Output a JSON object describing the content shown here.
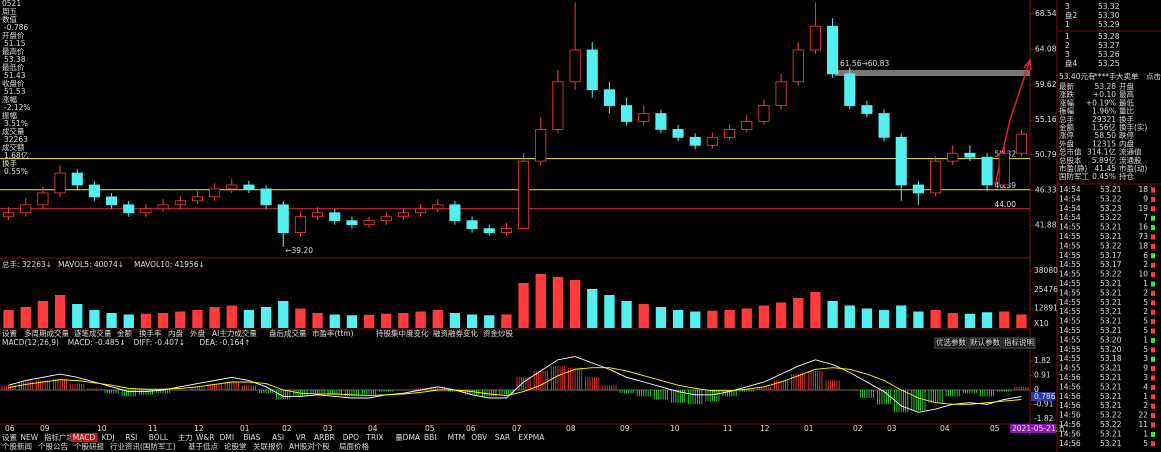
{
  "left_panel": {
    "date": "0521",
    "weekday": "周五",
    "rows": [
      [
        "数值",
        "-0.786"
      ],
      [
        "开盘价",
        "51.15"
      ],
      [
        "最高价",
        "53.38"
      ],
      [
        "最低价",
        "51.43"
      ],
      [
        "收盘价",
        "51.53"
      ],
      [
        "涨幅",
        "-2.12%"
      ],
      [
        "振幅",
        "3.51%"
      ],
      [
        "成交量",
        "32263"
      ],
      [
        "成交额",
        "1.68亿"
      ],
      [
        "换手",
        "0.55%"
      ]
    ]
  },
  "chart_data": {
    "type": "candlestick",
    "ohlc": [
      [
        43,
        44.2,
        42.6,
        43.5
      ],
      [
        43.5,
        45.3,
        43,
        44.5
      ],
      [
        44.5,
        46.8,
        44,
        46
      ],
      [
        46,
        49.5,
        45.5,
        48.5
      ],
      [
        48.5,
        49,
        46.3,
        47
      ],
      [
        47,
        47.5,
        45,
        45.5
      ],
      [
        45.5,
        46,
        44,
        44.5
      ],
      [
        44.5,
        45,
        43,
        43.5
      ],
      [
        43.5,
        44.6,
        43,
        44
      ],
      [
        44,
        45.2,
        43.6,
        44.5
      ],
      [
        44.5,
        45.6,
        44,
        45
      ],
      [
        45,
        46.2,
        44.6,
        45.5
      ],
      [
        45.5,
        47.2,
        45,
        46.5
      ],
      [
        46.5,
        47.8,
        46,
        47
      ],
      [
        47,
        47.5,
        46,
        46.5
      ],
      [
        46.5,
        47,
        44,
        44.5
      ],
      [
        44.5,
        45,
        39.2,
        41
      ],
      [
        41,
        43.6,
        40.5,
        43
      ],
      [
        43,
        44.2,
        42.6,
        43.5
      ],
      [
        43.5,
        44,
        42,
        42.5
      ],
      [
        42.5,
        43,
        41.5,
        42
      ],
      [
        42,
        43,
        41.6,
        42.5
      ],
      [
        42.5,
        43.6,
        42,
        43
      ],
      [
        43,
        44,
        42.6,
        43.5
      ],
      [
        43.5,
        44.6,
        43,
        44
      ],
      [
        44,
        45.2,
        43.6,
        44.5
      ],
      [
        44.5,
        45,
        42,
        42.5
      ],
      [
        42.5,
        43,
        41,
        41.5
      ],
      [
        41.5,
        42,
        40.6,
        41
      ],
      [
        41,
        42.2,
        40.6,
        41.5
      ],
      [
        41.5,
        51,
        41.5,
        50
      ],
      [
        50,
        55.5,
        49.5,
        54
      ],
      [
        54,
        61.5,
        53.5,
        60
      ],
      [
        60,
        70,
        59,
        64
      ],
      [
        64,
        65,
        58,
        59
      ],
      [
        59,
        60,
        56,
        57
      ],
      [
        57,
        58,
        54.5,
        55
      ],
      [
        55,
        57,
        54.5,
        56
      ],
      [
        56,
        56.5,
        53.5,
        54
      ],
      [
        54,
        54.6,
        52.5,
        53
      ],
      [
        53,
        53.5,
        51.5,
        52
      ],
      [
        52,
        53.6,
        51.6,
        53
      ],
      [
        53,
        54.6,
        52.6,
        54
      ],
      [
        54,
        55.8,
        53.6,
        55
      ],
      [
        55,
        57.8,
        54.6,
        57
      ],
      [
        57,
        61,
        56.5,
        60
      ],
      [
        60,
        65,
        59.5,
        64
      ],
      [
        64,
        70,
        63.5,
        67
      ],
      [
        67,
        68,
        60.5,
        61
      ],
      [
        61,
        61.8,
        56.5,
        57
      ],
      [
        57,
        57.6,
        55.5,
        56
      ],
      [
        56,
        56.5,
        52.5,
        53
      ],
      [
        53,
        53.5,
        45,
        47
      ],
      [
        47,
        47.5,
        44.5,
        46
      ],
      [
        46,
        50.6,
        45.6,
        50
      ],
      [
        50,
        52,
        49.5,
        51
      ],
      [
        51,
        52,
        50,
        50.5
      ],
      [
        50.5,
        51,
        46.2,
        47
      ],
      [
        47,
        51.8,
        46.6,
        51
      ],
      [
        51,
        54,
        50.6,
        53.4
      ]
    ],
    "up_color": "#ff3c3c",
    "down_color": "#54f0f0",
    "ylim": [
      37.8,
      70.3
    ],
    "yticks": [
      68.54,
      64.08,
      59.62,
      55.16,
      50.79,
      46.33,
      41.88
    ],
    "hlines": [
      {
        "value": 50.32,
        "label": "50.32",
        "color": "#e8e84a"
      },
      {
        "value": 46.39,
        "label": "46.39",
        "color": "#e8e84a"
      },
      {
        "value": 44.0,
        "label": "44.00",
        "color": "#e03030"
      }
    ],
    "low_label": "←39.20",
    "zone_label": "61.56→60.83",
    "date_labels": [
      "06",
      "09",
      "10",
      "11",
      "12",
      "01",
      "02",
      "03",
      "04",
      "05",
      "06",
      "07",
      "08",
      "09",
      "10",
      "11",
      "12",
      "01",
      "02",
      "03",
      "04",
      "05"
    ],
    "cursor_date": "2021-05-21,五",
    "volume": {
      "header": [
        "总手: 32263↓",
        "MAVOL5: 40074↓",
        "MAVOL10: 41956↓"
      ],
      "values": [
        12000,
        14000,
        18000,
        22000,
        16000,
        12000,
        10000,
        9000,
        9500,
        10000,
        11000,
        12000,
        14000,
        15000,
        12000,
        14000,
        18000,
        13000,
        10000,
        9000,
        8500,
        8800,
        9500,
        10000,
        11000,
        12000,
        10000,
        9000,
        8500,
        9000,
        30000,
        36000,
        34000,
        32000,
        26000,
        22000,
        18000,
        16000,
        14000,
        12000,
        11000,
        11500,
        12000,
        13000,
        15000,
        17000,
        20000,
        24000,
        18000,
        15000,
        13000,
        12000,
        15000,
        11000,
        12000,
        10000,
        9500,
        10500,
        11000,
        9000
      ],
      "ylim": [
        0,
        40000
      ],
      "yticks": [
        38080,
        25476,
        12891
      ],
      "unit_label": "X10"
    },
    "volume_tabs": [
      "设置",
      "多周期成交量",
      "逐笔成交量",
      "金额",
      "换手率",
      "内盘",
      "外盘",
      "AI主力成交量",
      "盘后成交量",
      "市盈率(ttm)",
      "持股集中度变化",
      "融资融券变化",
      "资金炒股"
    ],
    "macd": {
      "header": [
        "MACD(12,26,9)",
        "MACD: -0.485↓",
        "DIFF: -0.407↓",
        "DEA: -0.164↑"
      ],
      "buttons": [
        "优选参数",
        "默认参数",
        "指标说明"
      ],
      "hist": [
        0.3,
        0.5,
        0.6,
        0.7,
        0.4,
        0.1,
        -0.2,
        -0.4,
        -0.3,
        -0.2,
        0,
        0.2,
        0.4,
        0.5,
        0.3,
        -0.2,
        -0.6,
        -0.4,
        -0.2,
        -0.3,
        -0.4,
        -0.3,
        -0.1,
        0,
        0.1,
        0.2,
        -0.1,
        -0.3,
        -0.4,
        -0.3,
        0.8,
        1.2,
        1.5,
        1.4,
        0.8,
        0.3,
        -0.2,
        -0.4,
        -0.6,
        -0.8,
        -0.9,
        -0.7,
        -0.4,
        -0.1,
        0.2,
        0.6,
        1.0,
        1.2,
        0.6,
        0,
        -0.5,
        -0.9,
        -1.4,
        -1.3,
        -0.8,
        -0.4,
        -0.2,
        -0.4,
        -0.1,
        0.2
      ],
      "diff": [
        0.3,
        0.6,
        0.8,
        1.0,
        0.8,
        0.5,
        0.2,
        -0.1,
        -0.1,
        0,
        0.2,
        0.4,
        0.6,
        0.8,
        0.6,
        0.2,
        -0.4,
        -0.4,
        -0.3,
        -0.4,
        -0.5,
        -0.5,
        -0.3,
        -0.2,
        0,
        0.2,
        0,
        -0.3,
        -0.5,
        -0.5,
        0.5,
        1.2,
        1.9,
        2.1,
        1.7,
        1.3,
        0.8,
        0.5,
        0.2,
        -0.1,
        -0.3,
        -0.3,
        -0.1,
        0.2,
        0.5,
        1.0,
        1.5,
        1.9,
        1.6,
        1.1,
        0.5,
        -0.1,
        -1.0,
        -1.4,
        -1.2,
        -0.9,
        -0.8,
        -0.9,
        -0.6,
        -0.4
      ],
      "dea": [
        0.15,
        0.35,
        0.5,
        0.65,
        0.6,
        0.45,
        0.3,
        0.1,
        0.05,
        0.05,
        0.1,
        0.2,
        0.35,
        0.5,
        0.5,
        0.4,
        0.0,
        -0.2,
        -0.25,
        -0.25,
        -0.3,
        -0.35,
        -0.3,
        -0.25,
        -0.15,
        0,
        0,
        -0.1,
        -0.25,
        -0.35,
        -0.1,
        0.3,
        0.9,
        1.3,
        1.4,
        1.4,
        1.2,
        0.9,
        0.6,
        0.3,
        0.1,
        -0.05,
        -0.05,
        0.05,
        0.2,
        0.5,
        0.9,
        1.3,
        1.4,
        1.3,
        1.0,
        0.6,
        0.0,
        -0.5,
        -0.8,
        -0.9,
        -0.9,
        -0.8,
        -0.7,
        -0.6
      ],
      "ylim": [
        -2.2,
        2.2
      ],
      "yticks": [
        1.82,
        0.91,
        0,
        -0.91,
        -1.82
      ],
      "cursor_value": "0.786"
    }
  },
  "indicator_tabs": [
    "设置",
    "NEW",
    "指标广场",
    "MACD",
    "KDJ",
    "RSI",
    "BOLL",
    "主力",
    "W&R",
    "DMI",
    "BIAS",
    "ASI",
    "VR",
    "ARBR",
    "DPO",
    "TRIX",
    "量DMA",
    "BBI",
    "MTM",
    "OBV",
    "SAR",
    "EXPMA"
  ],
  "info_tabs": [
    "个股新闻",
    "个股公告",
    "个股研报",
    "行业资讯(国防军工)",
    "基于低点",
    "论股堂",
    "关联报价",
    "AH股对个股",
    "局面价格"
  ],
  "order_book": {
    "asks": [
      [
        "3",
        "53.32"
      ],
      [
        "盘2",
        "53.30"
      ],
      [
        "1",
        "53.29"
      ]
    ],
    "bids": [
      [
        "1",
        "53.28"
      ],
      [
        "2",
        "53.27"
      ],
      [
        "3",
        "53.26"
      ],
      [
        "盘4",
        "53.25"
      ]
    ]
  },
  "big_order": [
    "53.40元有",
    "****手",
    "大卖单",
    "点击"
  ],
  "stats": [
    [
      "最新",
      "53.28",
      "开盘"
    ],
    [
      "涨跌",
      "+0.10",
      "最高"
    ],
    [
      "涨幅",
      "+0.19%",
      "最低"
    ],
    [
      "振幅",
      "1.96%",
      "量比"
    ],
    [
      "总手",
      "29321",
      "换手"
    ],
    [
      "金额",
      "1.56亿",
      "换手(实)"
    ],
    [
      "涨停",
      "58.50",
      "跌停"
    ],
    [
      "外盘",
      "12315",
      "内盘"
    ],
    [
      "总市值",
      "314.1亿",
      "流通值"
    ],
    [
      "总股本",
      "5.89亿",
      "流通股"
    ],
    [
      "市盈(静)",
      "41.45",
      "市盈(动)"
    ],
    [
      "国防军工",
      "0.45%",
      "持仓"
    ]
  ],
  "trades": [
    [
      "14:54",
      "53.21",
      "18"
    ],
    [
      "14:54",
      "53.22",
      "9"
    ],
    [
      "14:54",
      "53.23",
      "19"
    ],
    [
      "14:54",
      "53.22",
      "7"
    ],
    [
      "14:55",
      "53.21",
      "16"
    ],
    [
      "14:55",
      "53.21",
      "73"
    ],
    [
      "14:55",
      "53.22",
      "18"
    ],
    [
      "14:55",
      "53.17",
      "6"
    ],
    [
      "14:55",
      "53.17",
      "2"
    ],
    [
      "14:55",
      "53.22",
      "10"
    ],
    [
      "14:55",
      "53.21",
      "1"
    ],
    [
      "14:55",
      "53.21",
      "2"
    ],
    [
      "14:55",
      "53.21",
      "5"
    ],
    [
      "14:55",
      "53.21",
      "2"
    ],
    [
      "14:55",
      "53.21",
      "5"
    ],
    [
      "14:55",
      "53.21",
      "5"
    ],
    [
      "14:55",
      "53.20",
      "1"
    ],
    [
      "14:55",
      "53.20",
      "5"
    ],
    [
      "14:55",
      "53.18",
      "3"
    ],
    [
      "14:55",
      "53.21",
      "9"
    ],
    [
      "14:56",
      "53.21",
      "3"
    ],
    [
      "14:56",
      "53.21",
      "4"
    ],
    [
      "14:56",
      "53.21",
      "1"
    ],
    [
      "14:56",
      "53.21",
      "2"
    ],
    [
      "14:56",
      "53.22",
      "22"
    ],
    [
      "14:56",
      "53.22",
      "11"
    ],
    [
      "14:56",
      "53.21",
      "1"
    ],
    [
      "14:56",
      "53.21",
      "5"
    ]
  ]
}
